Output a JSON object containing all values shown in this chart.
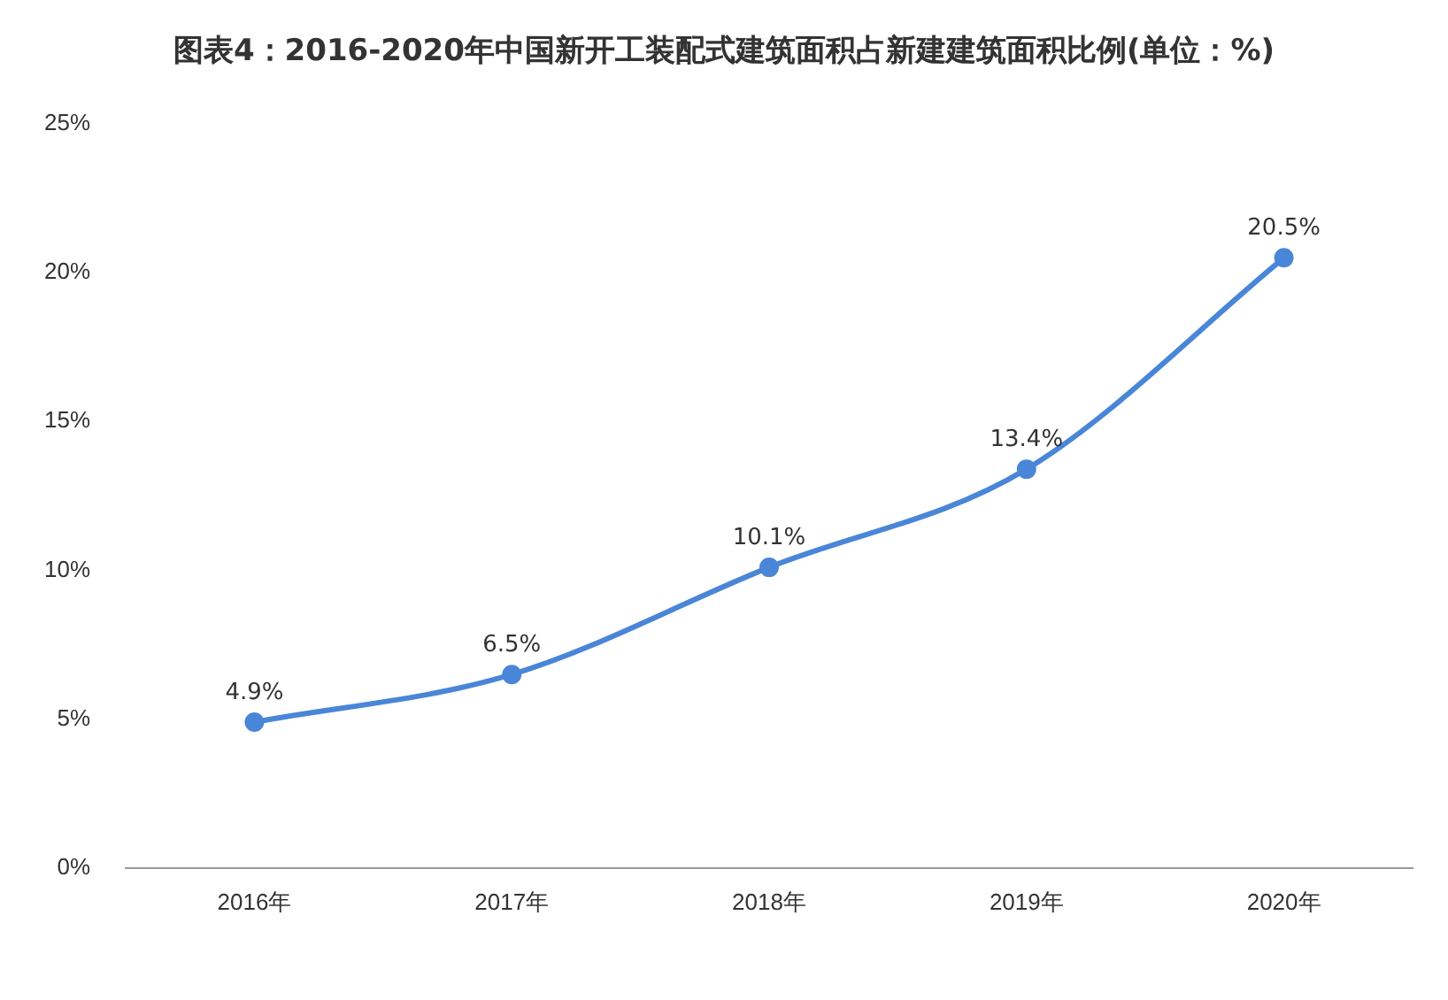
{
  "chart_data": {
    "type": "line",
    "title": "图表4：2016-2020年中国新开工装配式建筑面积占新建建筑面积比例(单位：%)",
    "categories": [
      "2016年",
      "2017年",
      "2018年",
      "2019年",
      "2020年"
    ],
    "series": [
      {
        "color": "#4a86d8",
        "values": [
          4.9,
          6.5,
          10.1,
          13.4,
          20.5
        ],
        "value_labels": [
          "4.9%",
          "6.5%",
          "10.1%",
          "13.4%",
          "20.5%"
        ]
      }
    ],
    "ylim": [
      0,
      25
    ],
    "yticks": [
      {
        "value": 0,
        "label": "0%"
      },
      {
        "value": 5,
        "label": "5%"
      },
      {
        "value": 10,
        "label": "10%"
      },
      {
        "value": 15,
        "label": "15%"
      },
      {
        "value": 20,
        "label": "20%"
      },
      {
        "value": 25,
        "label": "25%"
      }
    ],
    "grid": false,
    "legend": false,
    "marker": "circle",
    "line_style": "solid"
  }
}
